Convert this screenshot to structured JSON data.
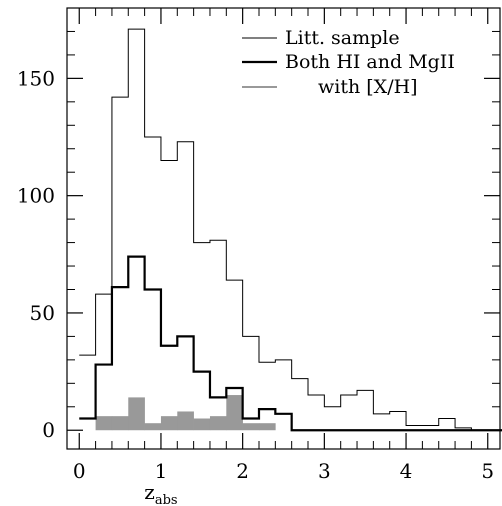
{
  "chart_data": {
    "type": "histogram",
    "xlabel": "z",
    "xlabel_subscript": "abs",
    "ylabel": "",
    "xlim": [
      -0.15,
      5.15
    ],
    "ylim": [
      -8,
      180
    ],
    "xticks": [
      0,
      1,
      2,
      3,
      4,
      5
    ],
    "yticks": [
      0,
      50,
      100,
      150
    ],
    "grid": false,
    "legend_position": "top-right",
    "bin_edges": [
      0.0,
      0.2,
      0.4,
      0.6,
      0.8,
      1.0,
      1.2,
      1.4,
      1.6,
      1.8,
      2.0,
      2.2,
      2.4,
      2.6,
      2.8,
      3.0,
      3.2,
      3.4,
      3.6,
      3.8,
      4.0,
      4.2,
      4.4,
      4.6,
      4.8,
      5.0,
      5.2
    ],
    "series": [
      {
        "name": "Litt. sample",
        "style": "thin-step",
        "color": "#000000",
        "values": [
          32,
          58,
          142,
          171,
          125,
          115,
          123,
          80,
          81,
          64,
          40,
          29,
          30,
          22,
          15,
          10,
          15,
          17,
          7,
          8,
          2,
          2,
          5,
          1,
          0,
          0
        ]
      },
      {
        "name": "Both HI and MgII",
        "style": "thick-step",
        "color": "#000000",
        "values": [
          5,
          28,
          61,
          74,
          60,
          36,
          40,
          25,
          14,
          18,
          5,
          9,
          7,
          0,
          0,
          0,
          0,
          0,
          0,
          0,
          0,
          0,
          0,
          0,
          0,
          0
        ]
      },
      {
        "name": "with [X/H]",
        "style": "filled",
        "color": "#999999",
        "values": [
          0,
          6,
          6,
          14,
          3,
          6,
          8,
          5,
          6,
          15,
          3,
          3,
          0,
          0,
          0,
          0,
          0,
          0,
          0,
          0,
          0,
          0,
          0,
          0,
          0,
          0
        ]
      }
    ]
  }
}
